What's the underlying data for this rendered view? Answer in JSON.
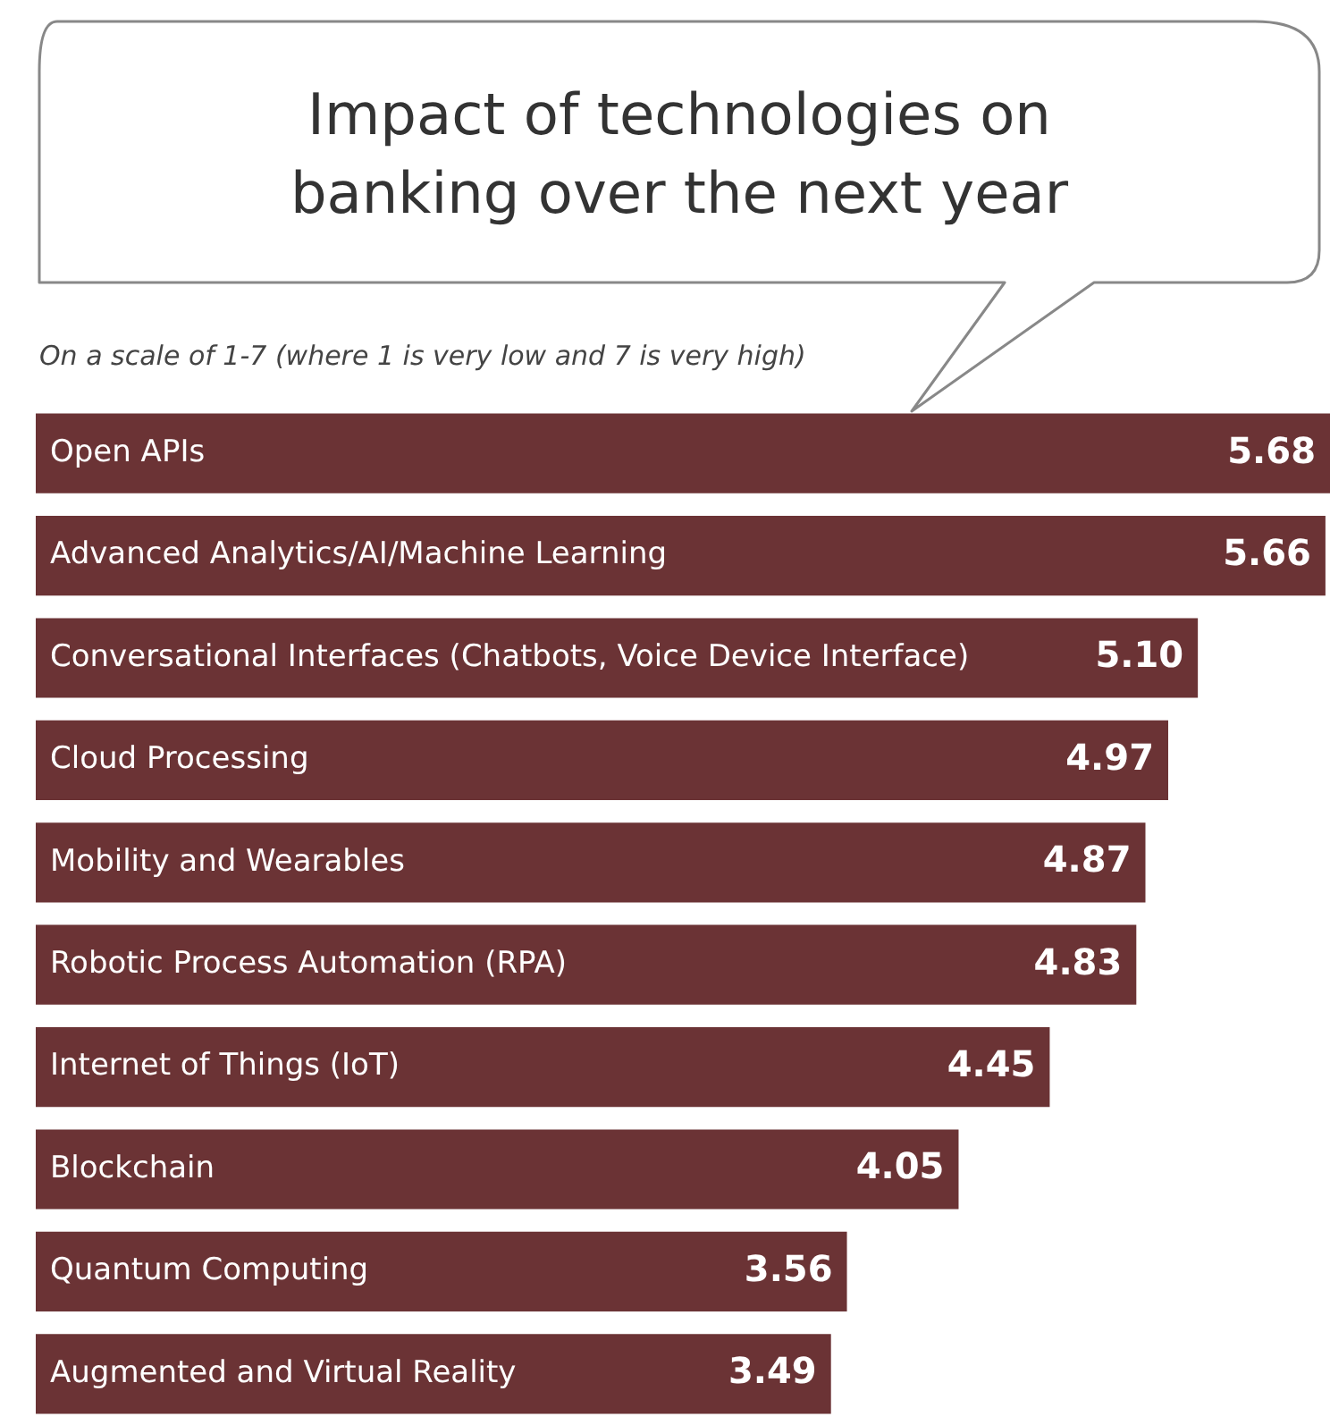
{
  "chart_data": {
    "type": "bar",
    "orientation": "horizontal",
    "title": "Impact of technologies on banking over the next year",
    "subtitle": "On a scale of 1-7 (where 1 is very low and 7 is very high)",
    "categories": [
      "Open APIs",
      "Advanced Analytics/AI/Machine Learning",
      "Conversational Interfaces (Chatbots, Voice Device Interface)",
      "Cloud Processing",
      "Mobility and Wearables",
      "Robotic Process Automation (RPA)",
      "Internet of Things (IoT)",
      "Blockchain",
      "Quantum Computing",
      "Augmented and Virtual Reality"
    ],
    "values": [
      5.68,
      5.66,
      5.1,
      4.97,
      4.87,
      4.83,
      4.45,
      4.05,
      3.56,
      3.49
    ],
    "value_labels": [
      "5.68",
      "5.66",
      "5.10",
      "4.97",
      "4.87",
      "4.83",
      "4.45",
      "4.05",
      "3.56",
      "3.49"
    ],
    "color": "#6b3335",
    "legend": false
  }
}
